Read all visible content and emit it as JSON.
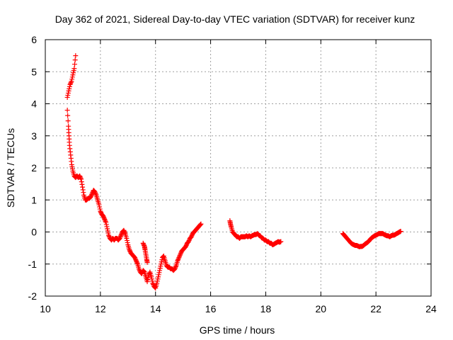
{
  "chart_data": {
    "type": "scatter",
    "title": "Day 362 of 2021, Sidereal Day-to-day VTEC variation (SDTVAR) for receiver kunz",
    "xlabel": "GPS time / hours",
    "ylabel": "SDTVAR / TECUs",
    "xlim": [
      10,
      24
    ],
    "ylim": [
      -2,
      6
    ],
    "xticks": [
      "10",
      "12",
      "14",
      "16",
      "18",
      "20",
      "22",
      "24"
    ],
    "yticks": [
      "-2",
      "-1",
      "0",
      "1",
      "2",
      "3",
      "4",
      "5",
      "6"
    ],
    "grid": true,
    "marker": "+",
    "series": [
      {
        "name": "SDTVAR",
        "color": "#ff0000",
        "segments": [
          [
            [
              10.8,
              4.2
            ],
            [
              10.85,
              4.4
            ],
            [
              10.9,
              4.6
            ],
            [
              10.95,
              4.7
            ],
            [
              11.0,
              4.9
            ],
            [
              11.05,
              5.1
            ],
            [
              11.1,
              5.5
            ]
          ],
          [
            [
              10.8,
              3.8
            ],
            [
              10.84,
              3.3
            ],
            [
              10.86,
              3.0
            ],
            [
              10.88,
              2.7
            ],
            [
              10.92,
              2.4
            ],
            [
              10.96,
              2.1
            ],
            [
              11.0,
              1.9
            ],
            [
              11.05,
              1.75
            ],
            [
              11.1,
              1.7
            ],
            [
              11.15,
              1.75
            ],
            [
              11.2,
              1.7
            ],
            [
              11.25,
              1.75
            ],
            [
              11.3,
              1.65
            ],
            [
              11.35,
              1.4
            ],
            [
              11.4,
              1.15
            ],
            [
              11.45,
              1.0
            ],
            [
              11.5,
              1.0
            ],
            [
              11.55,
              1.05
            ],
            [
              11.6,
              1.05
            ],
            [
              11.65,
              1.1
            ],
            [
              11.7,
              1.2
            ],
            [
              11.75,
              1.3
            ],
            [
              11.8,
              1.25
            ],
            [
              11.85,
              1.15
            ],
            [
              11.9,
              1.0
            ],
            [
              11.95,
              0.85
            ],
            [
              12.0,
              0.65
            ],
            [
              12.05,
              0.55
            ],
            [
              12.1,
              0.5
            ],
            [
              12.15,
              0.4
            ],
            [
              12.2,
              0.3
            ],
            [
              12.25,
              0.1
            ],
            [
              12.3,
              -0.1
            ],
            [
              12.35,
              -0.2
            ],
            [
              12.4,
              -0.25
            ],
            [
              12.45,
              -0.2
            ],
            [
              12.5,
              -0.25
            ],
            [
              12.55,
              -0.2
            ],
            [
              12.6,
              -0.2
            ],
            [
              12.65,
              -0.25
            ],
            [
              12.7,
              -0.2
            ],
            [
              12.75,
              -0.1
            ],
            [
              12.8,
              0.0
            ],
            [
              12.85,
              0.05
            ],
            [
              12.9,
              -0.05
            ],
            [
              12.95,
              -0.2
            ],
            [
              13.0,
              -0.4
            ],
            [
              13.05,
              -0.55
            ],
            [
              13.1,
              -0.65
            ],
            [
              13.15,
              -0.7
            ],
            [
              13.2,
              -0.75
            ],
            [
              13.25,
              -0.8
            ],
            [
              13.3,
              -0.9
            ],
            [
              13.35,
              -1.0
            ],
            [
              13.4,
              -1.15
            ],
            [
              13.45,
              -1.25
            ],
            [
              13.5,
              -1.3
            ],
            [
              13.55,
              -1.2
            ],
            [
              13.6,
              -1.25
            ],
            [
              13.65,
              -1.4
            ],
            [
              13.7,
              -1.55
            ],
            [
              13.75,
              -1.35
            ],
            [
              13.8,
              -1.25
            ],
            [
              13.85,
              -1.4
            ],
            [
              13.9,
              -1.6
            ],
            [
              13.95,
              -1.7
            ],
            [
              14.0,
              -1.75
            ],
            [
              14.05,
              -1.6
            ],
            [
              14.1,
              -1.4
            ],
            [
              14.15,
              -1.2
            ],
            [
              14.2,
              -1.0
            ],
            [
              14.25,
              -0.8
            ],
            [
              14.3,
              -0.75
            ],
            [
              14.35,
              -0.9
            ],
            [
              14.4,
              -1.05
            ],
            [
              14.45,
              -1.1
            ],
            [
              14.5,
              -1.1
            ],
            [
              14.55,
              -1.15
            ],
            [
              14.6,
              -1.15
            ],
            [
              14.65,
              -1.2
            ],
            [
              14.7,
              -1.15
            ],
            [
              14.75,
              -1.05
            ],
            [
              14.8,
              -0.9
            ],
            [
              14.85,
              -0.8
            ],
            [
              14.9,
              -0.7
            ],
            [
              14.95,
              -0.6
            ],
            [
              15.0,
              -0.55
            ],
            [
              15.05,
              -0.5
            ],
            [
              15.1,
              -0.45
            ],
            [
              15.15,
              -0.35
            ],
            [
              15.2,
              -0.3
            ],
            [
              15.25,
              -0.2
            ],
            [
              15.3,
              -0.15
            ],
            [
              15.35,
              -0.05
            ],
            [
              15.4,
              0.0
            ],
            [
              15.45,
              0.05
            ],
            [
              15.5,
              0.1
            ],
            [
              15.55,
              0.15
            ],
            [
              15.6,
              0.2
            ],
            [
              15.65,
              0.25
            ]
          ],
          [
            [
              13.55,
              -0.35
            ],
            [
              13.6,
              -0.45
            ],
            [
              13.62,
              -0.55
            ],
            [
              13.65,
              -0.7
            ],
            [
              13.68,
              -0.85
            ],
            [
              13.7,
              -0.95
            ]
          ],
          [
            [
              16.7,
              0.35
            ],
            [
              16.72,
              0.25
            ],
            [
              16.75,
              0.15
            ],
            [
              16.8,
              0.0
            ],
            [
              16.85,
              -0.05
            ],
            [
              16.9,
              -0.1
            ],
            [
              16.95,
              -0.15
            ],
            [
              17.0,
              -0.15
            ],
            [
              17.05,
              -0.2
            ],
            [
              17.1,
              -0.15
            ],
            [
              17.15,
              -0.15
            ],
            [
              17.2,
              -0.15
            ],
            [
              17.25,
              -0.15
            ],
            [
              17.3,
              -0.12
            ],
            [
              17.35,
              -0.15
            ],
            [
              17.4,
              -0.12
            ],
            [
              17.45,
              -0.15
            ],
            [
              17.5,
              -0.12
            ],
            [
              17.55,
              -0.1
            ],
            [
              17.6,
              -0.08
            ],
            [
              17.65,
              -0.08
            ],
            [
              17.7,
              -0.05
            ],
            [
              17.75,
              -0.1
            ],
            [
              17.8,
              -0.12
            ],
            [
              17.85,
              -0.18
            ],
            [
              17.9,
              -0.2
            ],
            [
              17.95,
              -0.25
            ],
            [
              18.0,
              -0.25
            ],
            [
              18.05,
              -0.3
            ],
            [
              18.1,
              -0.3
            ],
            [
              18.15,
              -0.35
            ],
            [
              18.2,
              -0.35
            ],
            [
              18.25,
              -0.4
            ],
            [
              18.3,
              -0.38
            ],
            [
              18.35,
              -0.35
            ],
            [
              18.4,
              -0.33
            ],
            [
              18.45,
              -0.3
            ],
            [
              18.5,
              -0.32
            ],
            [
              18.55,
              -0.3
            ]
          ],
          [
            [
              20.8,
              -0.05
            ],
            [
              20.85,
              -0.1
            ],
            [
              20.9,
              -0.15
            ],
            [
              20.95,
              -0.2
            ],
            [
              21.0,
              -0.25
            ],
            [
              21.05,
              -0.3
            ],
            [
              21.1,
              -0.35
            ],
            [
              21.15,
              -0.38
            ],
            [
              21.2,
              -0.4
            ],
            [
              21.25,
              -0.42
            ],
            [
              21.3,
              -0.42
            ],
            [
              21.35,
              -0.44
            ],
            [
              21.4,
              -0.46
            ],
            [
              21.45,
              -0.45
            ],
            [
              21.5,
              -0.45
            ],
            [
              21.55,
              -0.42
            ],
            [
              21.6,
              -0.38
            ],
            [
              21.65,
              -0.35
            ],
            [
              21.7,
              -0.32
            ],
            [
              21.75,
              -0.28
            ],
            [
              21.8,
              -0.22
            ],
            [
              21.85,
              -0.18
            ],
            [
              21.9,
              -0.15
            ],
            [
              21.95,
              -0.12
            ],
            [
              22.0,
              -0.1
            ],
            [
              22.05,
              -0.08
            ],
            [
              22.1,
              -0.05
            ],
            [
              22.15,
              -0.05
            ],
            [
              22.2,
              -0.05
            ],
            [
              22.25,
              -0.05
            ],
            [
              22.3,
              -0.08
            ],
            [
              22.35,
              -0.1
            ],
            [
              22.4,
              -0.12
            ],
            [
              22.45,
              -0.12
            ],
            [
              22.5,
              -0.15
            ],
            [
              22.55,
              -0.12
            ],
            [
              22.6,
              -0.1
            ],
            [
              22.65,
              -0.1
            ],
            [
              22.7,
              -0.08
            ],
            [
              22.75,
              -0.05
            ],
            [
              22.8,
              -0.03
            ],
            [
              22.85,
              0.0
            ],
            [
              22.9,
              0.02
            ]
          ]
        ]
      }
    ]
  }
}
